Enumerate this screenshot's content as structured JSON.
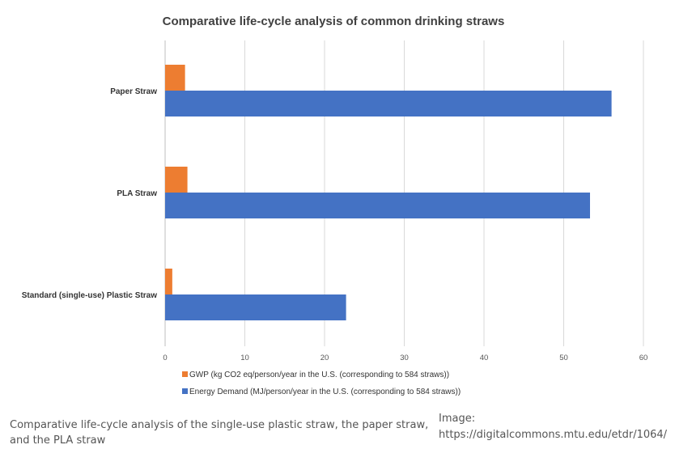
{
  "chart_data": {
    "type": "bar",
    "orientation": "horizontal",
    "title": "Comparative life-cycle analysis of common drinking straws",
    "categories": [
      "Paper Straw",
      "PLA Straw",
      "Standard (single-use) Plastic Straw"
    ],
    "series": [
      {
        "name": "GWP (kg CO2 eq/person/year in the U.S. (corresponding to 584 straws))",
        "color": "#ED7D31",
        "values": [
          2.5,
          2.8,
          0.9
        ]
      },
      {
        "name": "Energy Demand (MJ/person/year in the U.S. (corresponding to 584 straws))",
        "color": "#4472C4",
        "values": [
          56,
          53.3,
          22.7
        ]
      }
    ],
    "xlim": [
      0,
      60
    ],
    "xticks": [
      "0",
      "10",
      "20",
      "30",
      "40",
      "50",
      "60"
    ],
    "grid": true,
    "legend_position": "bottom"
  },
  "caption": {
    "text": "Comparative life-cycle analysis of the single-use plastic straw, the paper straw, and the PLA straw",
    "image_label": "Image:",
    "image_source": "https://digitalcommons.mtu.edu/etdr/1064/"
  }
}
